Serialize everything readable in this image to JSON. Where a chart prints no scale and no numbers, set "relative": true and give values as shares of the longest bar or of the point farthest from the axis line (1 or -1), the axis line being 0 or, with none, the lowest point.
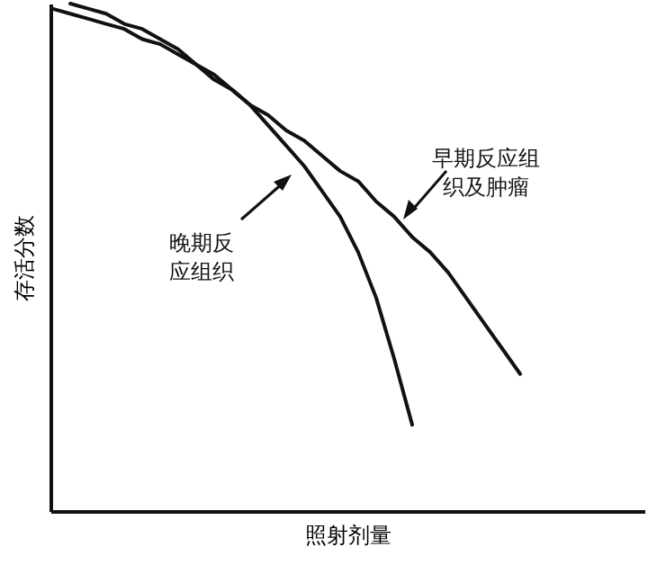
{
  "chart_data": {
    "type": "line",
    "relative": true,
    "xlabel": "照射剂量",
    "ylabel": "存活分数",
    "categories": [
      null,
      null,
      null,
      null,
      null,
      null,
      null,
      null,
      null,
      null,
      null,
      null,
      null,
      null,
      null,
      null,
      null,
      null,
      null,
      null,
      null,
      null,
      null,
      null,
      null,
      null,
      null
    ],
    "series": [
      {
        "color": "#111111",
        "values": [
          0.99,
          0.98,
          0.97,
          0.96,
          0.95,
          0.93,
          0.92,
          0.9,
          0.88,
          0.85,
          0.83,
          0.8,
          0.76,
          0.72,
          0.68,
          0.63,
          0.58,
          0.51,
          0.42,
          0.3,
          0.17,
          null,
          null,
          null,
          null,
          null,
          null
        ]
      },
      {
        "color": "#111111",
        "values": [
          null,
          1.0,
          0.99,
          0.98,
          0.96,
          0.95,
          0.93,
          0.91,
          0.88,
          0.86,
          0.83,
          0.8,
          0.78,
          0.75,
          0.73,
          0.7,
          0.67,
          0.65,
          0.61,
          0.58,
          0.54,
          0.51,
          0.47,
          0.42,
          0.37,
          0.32,
          0.27
        ]
      }
    ],
    "annotations": [
      "晚期反应组织",
      "早期反应组织及肿瘤"
    ]
  }
}
